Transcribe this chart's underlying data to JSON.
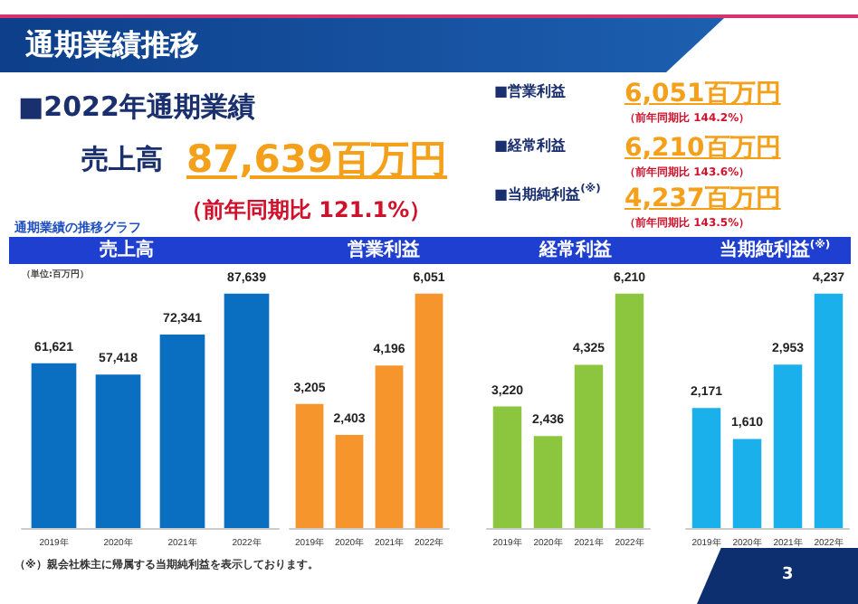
{
  "chart_data": [
    {
      "type": "bar",
      "title": "売上高",
      "categories": [
        "2019年",
        "2020年",
        "2021年",
        "2022年"
      ],
      "values": [
        61621,
        57418,
        72341,
        87639
      ],
      "color": "#0b6fc1",
      "value_labels": [
        "61,621",
        "57,418",
        "72,341",
        "87,639"
      ],
      "annotations": [
        "通期業績推移",
        "■2022年通期業績",
        "売上高",
        "87,639百万円",
        "（前年同期比 121.1%）",
        "■営業利益",
        "6,051百万円",
        "（前年同期比 144.2%）",
        "■経常利益",
        "6,210百万円",
        "（前年同期比 143.6%）",
        "■当期純利益$^{(※)}$",
        "4,237百万円",
        "（前年同期比 143.5%）",
        "通期業績の推移グラフ",
        "（単位:百万円）",
        "（※）親会社株主に帰属する当期純利益を表示しております。",
        "3"
      ]
    },
    {
      "type": "bar",
      "title": "営業利益",
      "categories": [
        "2019年",
        "2020年",
        "2021年",
        "2022年"
      ],
      "values": [
        3205,
        2403,
        4196,
        6051
      ],
      "color": "#f7952d",
      "value_labels": [
        "3,205",
        "2,403",
        "4,196",
        "6,051"
      ]
    },
    {
      "type": "bar",
      "title": "経常利益",
      "categories": [
        "2019年",
        "2020年",
        "2021年",
        "2022年"
      ],
      "values": [
        3220,
        2436,
        4325,
        6210
      ],
      "color": "#8cc63f",
      "value_labels": [
        "3,220",
        "2,436",
        "4,325",
        "6,210"
      ]
    },
    {
      "type": "bar",
      "title": "当期純利益$^{(※)}$",
      "categories": [
        "2019年",
        "2020年",
        "2021年",
        "2022年"
      ],
      "values": [
        2171,
        1610,
        2953,
        4237
      ],
      "color": "#1ab0ec",
      "value_labels": [
        "2,171",
        "1,610",
        "2,953",
        "4,237"
      ]
    }
  ]
}
